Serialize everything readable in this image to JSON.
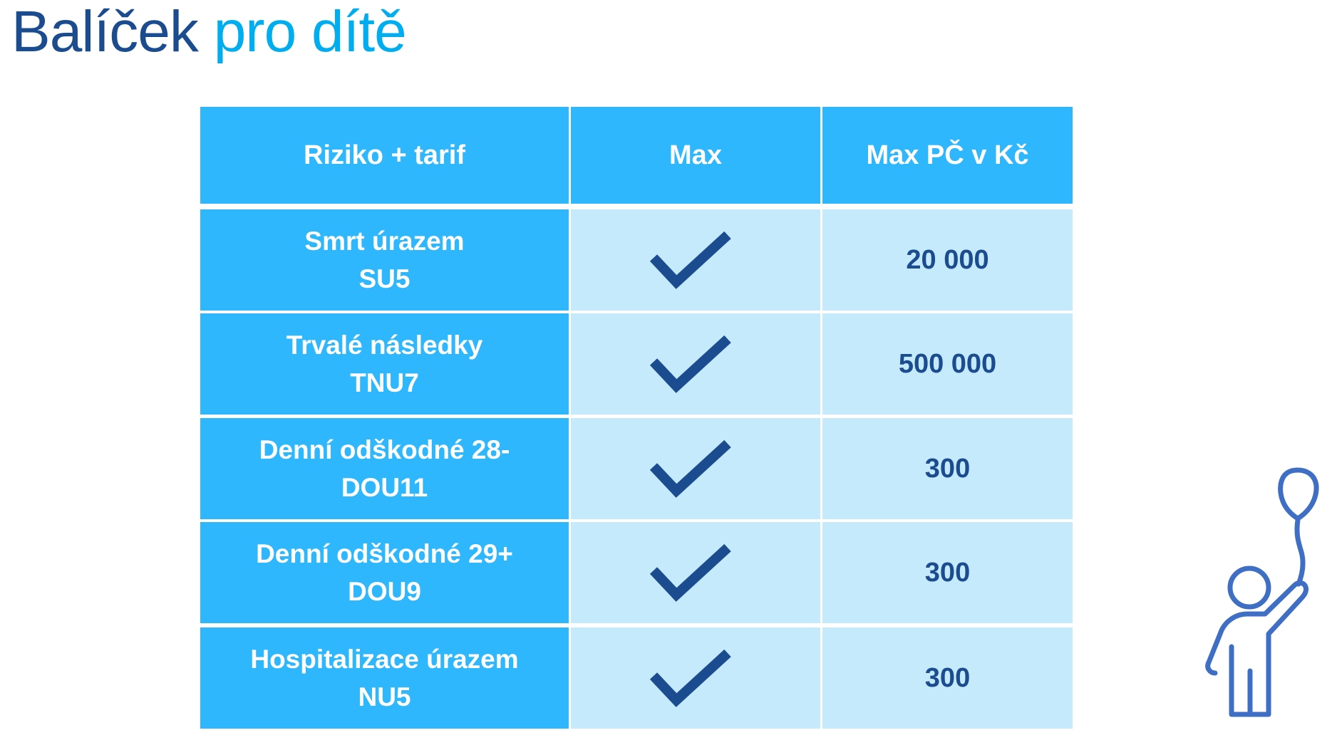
{
  "title": {
    "part1": "Balíček",
    "part2": "pro dítě"
  },
  "colors": {
    "title_dark": "#1B4C8F",
    "title_light": "#00AEEF",
    "header_bg": "#2EB7FD",
    "cell_light": "#C5EAFC",
    "check": "#1B4C8F",
    "icon": "#3F6FC4"
  },
  "table": {
    "headers": [
      "Riziko + tarif",
      "Max",
      "Max PČ v Kč"
    ],
    "rows": [
      {
        "risk": "Smrt úrazem",
        "tariff": "SU5",
        "max": "check-icon",
        "amount": "20 000"
      },
      {
        "risk": "Trvalé následky",
        "tariff": "TNU7",
        "max": "check-icon",
        "amount": "500 000"
      },
      {
        "risk": "Denní odškodné 28-",
        "tariff": "DOU11",
        "max": "check-icon",
        "amount": "300"
      },
      {
        "risk": "Denní odškodné 29+",
        "tariff": "DOU9",
        "max": "check-icon",
        "amount": "300"
      },
      {
        "risk": "Hospitalizace úrazem",
        "tariff": "NU5",
        "max": "check-icon",
        "amount": "300"
      }
    ]
  },
  "illustration": "child-with-balloon-icon"
}
